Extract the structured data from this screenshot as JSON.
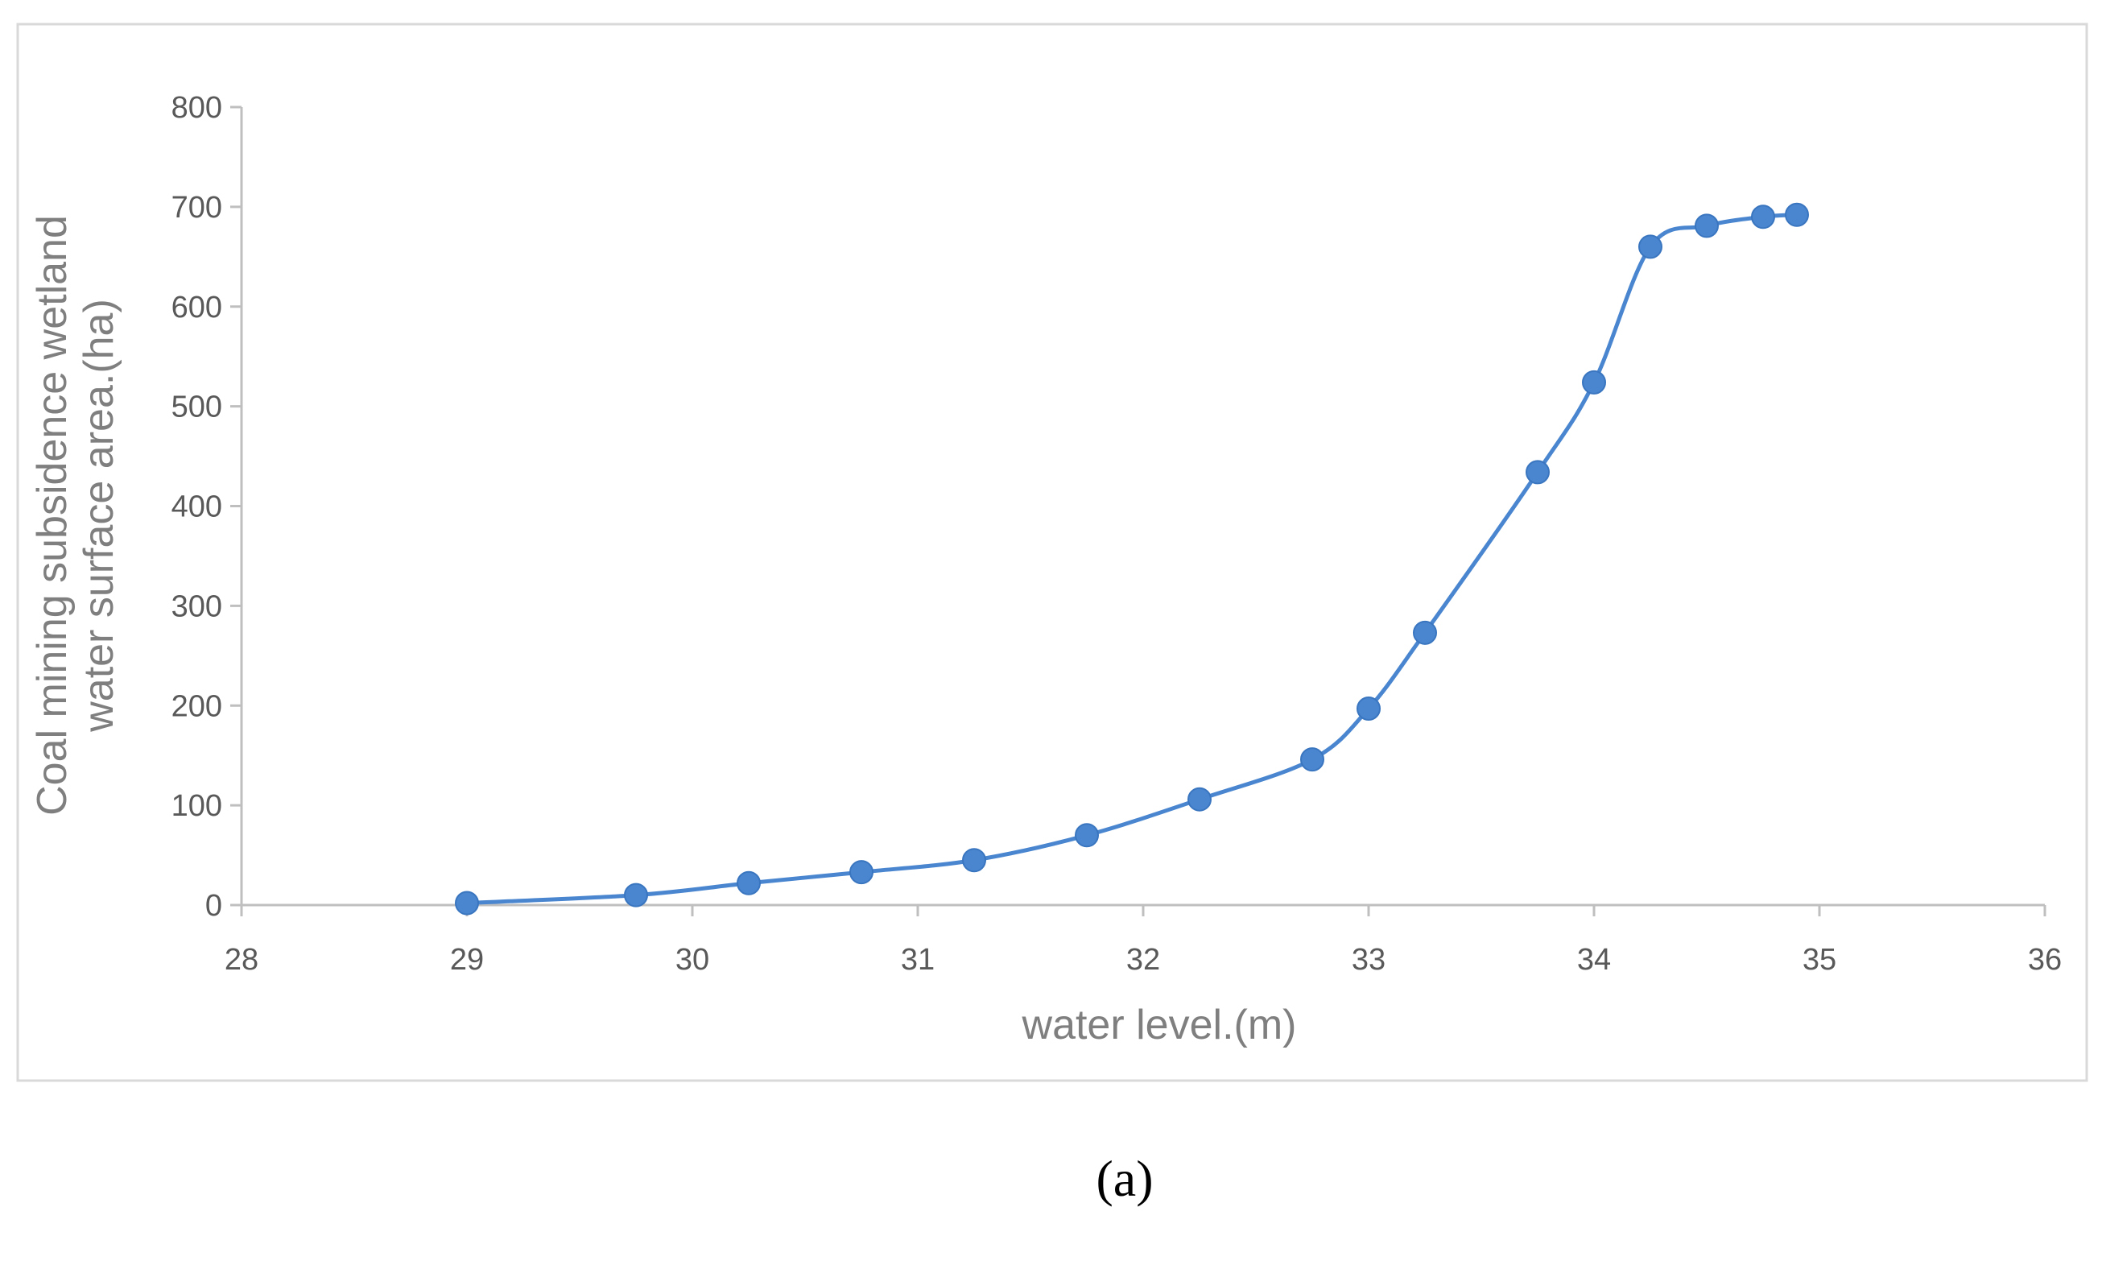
{
  "chart_data": {
    "type": "line",
    "title": "",
    "xlabel": "water level.(m)",
    "ylabel_lines": [
      "Coal mining subsidence wetland",
      "water surface area.(ha)"
    ],
    "xlim": [
      28,
      36
    ],
    "ylim": [
      0,
      800
    ],
    "xticks": [
      "28",
      "29",
      "30",
      "31",
      "32",
      "33",
      "34",
      "35",
      "36"
    ],
    "yticks": [
      "0",
      "100",
      "200",
      "300",
      "400",
      "500",
      "600",
      "700",
      "800"
    ],
    "grid": false,
    "legend": "none",
    "series": [
      {
        "color": "#4a86d0",
        "marker": "circle",
        "smooth": true,
        "points": [
          {
            "x": 29.0,
            "y": 2
          },
          {
            "x": 29.75,
            "y": 10
          },
          {
            "x": 30.25,
            "y": 22
          },
          {
            "x": 30.75,
            "y": 33
          },
          {
            "x": 31.25,
            "y": 45
          },
          {
            "x": 31.75,
            "y": 70
          },
          {
            "x": 32.25,
            "y": 106
          },
          {
            "x": 32.75,
            "y": 146
          },
          {
            "x": 33.0,
            "y": 197
          },
          {
            "x": 33.25,
            "y": 273
          },
          {
            "x": 33.75,
            "y": 434
          },
          {
            "x": 34.0,
            "y": 524
          },
          {
            "x": 34.25,
            "y": 660
          },
          {
            "x": 34.5,
            "y": 681
          },
          {
            "x": 34.75,
            "y": 690
          },
          {
            "x": 34.9,
            "y": 692
          }
        ]
      }
    ]
  },
  "panel_label": "(a)"
}
